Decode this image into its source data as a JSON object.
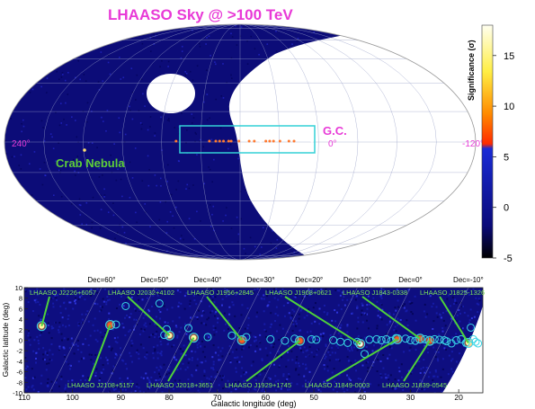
{
  "chart_data": [
    {
      "type": "heatmap",
      "title": "LHAASO Sky @ >100 TeV",
      "projection": "aitoff, galactic coordinates",
      "lon_tick_labels": [
        "240°",
        "0°",
        "-120°"
      ],
      "annotations": [
        {
          "text": "G.C.",
          "color": "#e83ad7"
        },
        {
          "text": "Crab Nebula",
          "color": "#5ecf3a"
        }
      ],
      "colorbar": {
        "label": "Significance (σ)",
        "range": [
          -5,
          18
        ],
        "ticks": [
          "15",
          "10",
          "5",
          "0",
          "-5"
        ],
        "colors": [
          "#000000",
          "#0a0a7a",
          "#1a2bd6",
          "#ff2a00",
          "#ff8a00",
          "#ffee44",
          "#fffff0"
        ]
      },
      "hot_spots_lon_deg": [
        0,
        14,
        18,
        25,
        30,
        33,
        36,
        40,
        45,
        49,
        57,
        63,
        65,
        69,
        72,
        75,
        80,
        106,
        184.6
      ]
    },
    {
      "type": "scatter",
      "xlabel": "Galactic longitude (deg)",
      "ylabel": "Galactic latitude (deg)",
      "xlim": [
        110,
        15
      ],
      "ylim": [
        -10,
        10
      ],
      "xticks": [
        110,
        100,
        90,
        80,
        70,
        60,
        50,
        40,
        30,
        20
      ],
      "yticks": [
        10,
        8,
        6,
        4,
        2,
        0,
        -2,
        -4,
        -6,
        -8,
        -10
      ],
      "dec_labels": [
        {
          "text": "Dec=60°",
          "lon": 94
        },
        {
          "text": "Dec=50°",
          "lon": 83
        },
        {
          "text": "Dec=40°",
          "lon": 72
        },
        {
          "text": "Dec=30°",
          "lon": 61
        },
        {
          "text": "Dec=20°",
          "lon": 51
        },
        {
          "text": "Dec=10°",
          "lon": 41
        },
        {
          "text": "Dec=0°",
          "lon": 30
        },
        {
          "text": "Dec=-10°",
          "lon": 18
        }
      ],
      "sources": [
        {
          "name": "LHAASO J2226+6057",
          "lon": 106.4,
          "lat": 2.7
        },
        {
          "name": "LHAASO J2108+5157",
          "lon": 92.2,
          "lat": 2.9
        },
        {
          "name": "LHAASO J2032+4102",
          "lon": 79.9,
          "lat": 0.9
        },
        {
          "name": "LHAASO J2018+3651",
          "lon": 74.9,
          "lat": 0.5
        },
        {
          "name": "LHAASO J1956+2845",
          "lon": 64.9,
          "lat": 0.0
        },
        {
          "name": "LHAASO J1929+1745",
          "lon": 52.9,
          "lat": -0.1
        },
        {
          "name": "LHAASO J1908+0621",
          "lon": 40.4,
          "lat": -0.7
        },
        {
          "name": "LHAASO J1849-0003",
          "lon": 32.7,
          "lat": 0.2
        },
        {
          "name": "LHAASO J1843-0338",
          "lon": 28.0,
          "lat": 0.3
        },
        {
          "name": "LHAASO J1839-0545",
          "lon": 26.0,
          "lat": -0.1
        },
        {
          "name": "LHAASO J1825-1326",
          "lon": 18.0,
          "lat": -0.5
        }
      ],
      "catalog_circles": [
        [
          91,
          3.0
        ],
        [
          89,
          6.5
        ],
        [
          82,
          7.0
        ],
        [
          80.5,
          2.1
        ],
        [
          81,
          1.0
        ],
        [
          76,
          2.3
        ],
        [
          72,
          0.6
        ],
        [
          67,
          0.9
        ],
        [
          64,
          0.6
        ],
        [
          59,
          0.2
        ],
        [
          56,
          -0.1
        ],
        [
          54,
          0.3
        ],
        [
          50.5,
          0.2
        ],
        [
          49.5,
          0.1
        ],
        [
          46,
          0.0
        ],
        [
          44.5,
          -0.3
        ],
        [
          43,
          -0.5
        ],
        [
          41,
          -0.3
        ],
        [
          39.5,
          -2.6
        ],
        [
          38.5,
          0.1
        ],
        [
          37,
          0.2
        ],
        [
          36,
          0.0
        ],
        [
          35,
          0.2
        ],
        [
          34,
          -0.1
        ],
        [
          33,
          0.4
        ],
        [
          31,
          0.3
        ],
        [
          30,
          0.0
        ],
        [
          29,
          -0.1
        ],
        [
          27,
          0.2
        ],
        [
          25,
          0.2
        ],
        [
          24,
          0.1
        ],
        [
          23,
          0.0
        ],
        [
          22.5,
          -0.2
        ],
        [
          21.5,
          -0.6
        ],
        [
          20.5,
          0.0
        ],
        [
          19.5,
          0.2
        ],
        [
          18.5,
          -0.5
        ],
        [
          17.5,
          2.4
        ],
        [
          17,
          0.2
        ],
        [
          16.5,
          -0.3
        ],
        [
          16,
          -0.6
        ]
      ]
    }
  ]
}
